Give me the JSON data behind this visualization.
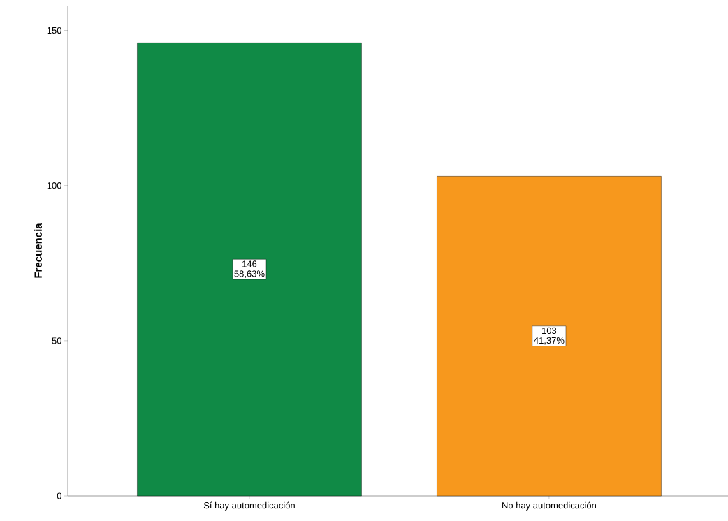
{
  "chart_data": {
    "type": "bar",
    "ylabel": "Frecuencia",
    "categories": [
      "Sí hay automedicación",
      "No hay automedicación"
    ],
    "values": [
      146,
      103
    ],
    "colors": [
      "#108a46",
      "#f7981d"
    ],
    "ylim": [
      0,
      158
    ],
    "yticks": [
      0,
      50,
      100,
      150
    ],
    "data_labels": true,
    "annotations": [
      "58,63%",
      "41,37%"
    ],
    "grid": false
  }
}
